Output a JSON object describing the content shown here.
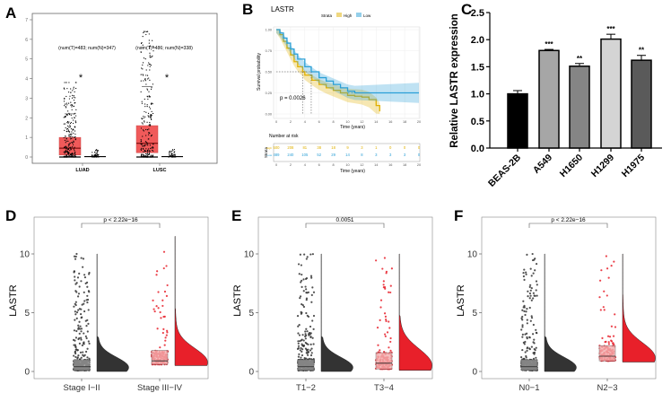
{
  "panels": {
    "A": {
      "letter": "A"
    },
    "B": {
      "letter": "B"
    },
    "C": {
      "letter": "C"
    },
    "D": {
      "letter": "D"
    },
    "E": {
      "letter": "E"
    },
    "F": {
      "letter": "F"
    }
  },
  "chart_data": [
    {
      "panel": "A",
      "type": "box",
      "ylim": [
        0,
        7
      ],
      "yticks": [
        "0",
        "1",
        "2",
        "3",
        "4",
        "5",
        "6",
        "7"
      ],
      "categories": [
        "LUAD",
        "LUSC"
      ],
      "annotations": [
        "(num(T)=483; num(N)=347)",
        "(num(T)=486; num(N)=338)"
      ],
      "significance": [
        "*",
        "*"
      ],
      "tumor_color": "#f05a5a",
      "groups": [
        {
          "name": "LUAD",
          "tumor": {
            "q1": 0.1,
            "median": 0.45,
            "q3": 1.0,
            "whisker": 2.2,
            "max": 3.8
          },
          "normal": {
            "median": 0.02,
            "max": 0.4
          }
        },
        {
          "name": "LUSC",
          "tumor": {
            "q1": 0.22,
            "median": 0.7,
            "q3": 1.6,
            "whisker": 3.6,
            "max": 6.4
          },
          "normal": {
            "median": 0.02,
            "max": 0.4
          }
        }
      ]
    },
    {
      "panel": "B",
      "type": "line",
      "title": "LASTR",
      "legend_title": "Strata",
      "legend_position": "top",
      "xlabel": "Time (years)",
      "ylabel": "Survival probability",
      "xlim": [
        0,
        20
      ],
      "ylim": [
        0,
        1
      ],
      "xticks": [
        "0",
        "2",
        "4",
        "6",
        "8",
        "10",
        "12",
        "14",
        "16",
        "18",
        "20"
      ],
      "yticks": [
        "0.00",
        "0.25",
        "0.50",
        "0.75",
        "1.00"
      ],
      "pvalue": "p = 0.0026",
      "series": [
        {
          "name": "High",
          "color": "#e0b000",
          "median": 3.7,
          "points": [
            [
              0,
              1
            ],
            [
              0.5,
              0.94
            ],
            [
              1,
              0.86
            ],
            [
              1.5,
              0.78
            ],
            [
              2,
              0.7
            ],
            [
              2.5,
              0.62
            ],
            [
              3,
              0.56
            ],
            [
              3.7,
              0.5
            ],
            [
              4,
              0.46
            ],
            [
              5,
              0.4
            ],
            [
              6,
              0.35
            ],
            [
              7,
              0.31
            ],
            [
              8,
              0.28
            ],
            [
              9,
              0.25
            ],
            [
              10,
              0.22
            ],
            [
              11,
              0.21
            ],
            [
              12,
              0.2
            ],
            [
              13,
              0.17
            ],
            [
              14,
              0.1
            ],
            [
              14.5,
              0.03
            ]
          ]
        },
        {
          "name": "Low",
          "color": "#2a9fd6",
          "median": 4.9,
          "points": [
            [
              0,
              1
            ],
            [
              0.5,
              0.96
            ],
            [
              1,
              0.9
            ],
            [
              1.5,
              0.84
            ],
            [
              2,
              0.77
            ],
            [
              2.5,
              0.71
            ],
            [
              3,
              0.65
            ],
            [
              4,
              0.56
            ],
            [
              4.9,
              0.5
            ],
            [
              6,
              0.43
            ],
            [
              7,
              0.39
            ],
            [
              8,
              0.35
            ],
            [
              9,
              0.31
            ],
            [
              10,
              0.27
            ],
            [
              11,
              0.25
            ],
            [
              20,
              0.25
            ]
          ]
        }
      ],
      "risk_table": {
        "title": "Number at risk",
        "ylabel": "Strata",
        "xlabel": "Time (years)",
        "times": [
          0,
          2,
          4,
          6,
          8,
          10,
          12,
          14,
          16,
          18,
          20
        ],
        "rows": [
          {
            "name": "High",
            "values": [
              500,
              208,
              81,
              38,
              18,
              9,
              3,
              1,
              0,
              0,
              0
            ]
          },
          {
            "name": "Low",
            "values": [
              489,
              240,
              105,
              52,
              29,
              14,
              8,
              3,
              3,
              3,
              0
            ]
          }
        ]
      }
    },
    {
      "panel": "C",
      "type": "bar",
      "ylabel": "Relative LASTR expression",
      "ylim": [
        0,
        2.5
      ],
      "yticks": [
        "0.0",
        "0.5",
        "1.0",
        "1.5",
        "2.0",
        "2.5"
      ],
      "categories": [
        "BEAS-2B",
        "A549",
        "H1650",
        "H1299",
        "H1975"
      ],
      "values": [
        1.0,
        1.8,
        1.51,
        2.01,
        1.62
      ],
      "errors": [
        0.06,
        0.02,
        0.05,
        0.09,
        0.09
      ],
      "significance": [
        "",
        "***",
        "**",
        "***",
        "**"
      ],
      "colors": [
        "#000000",
        "#a6a6a6",
        "#858585",
        "#d4d4d4",
        "#5a5a5a"
      ]
    },
    {
      "panel": "D",
      "type": "raincloud",
      "ylabel": "LASTR",
      "ylim": [
        0,
        12
      ],
      "yticks": [
        "0",
        "5",
        "10"
      ],
      "categories": [
        "Stage I−II",
        "Stage III−IV"
      ],
      "pvalue": "p < 2.22e−16",
      "colors": [
        "#333333",
        "#e8202a"
      ],
      "groups": [
        {
          "q1": 0.1,
          "median": 0.4,
          "q3": 1.0,
          "max": 10
        },
        {
          "q1": 0.6,
          "median": 0.9,
          "q3": 1.8,
          "max": 11.5
        }
      ]
    },
    {
      "panel": "E",
      "type": "raincloud",
      "ylabel": "LASTR",
      "ylim": [
        0,
        12
      ],
      "yticks": [
        "0",
        "5",
        "10"
      ],
      "categories": [
        "T1−2",
        "T3−4"
      ],
      "pvalue": "0.0051",
      "colors": [
        "#333333",
        "#e8202a"
      ],
      "groups": [
        {
          "q1": 0.1,
          "median": 0.4,
          "q3": 1.0,
          "max": 10
        },
        {
          "q1": 0.2,
          "median": 0.7,
          "q3": 1.6,
          "max": 10
        }
      ]
    },
    {
      "panel": "F",
      "type": "raincloud",
      "ylabel": "LASTR",
      "ylim": [
        0,
        12
      ],
      "yticks": [
        "0",
        "5",
        "10"
      ],
      "categories": [
        "N0−1",
        "N2−3"
      ],
      "pvalue": "p < 2.22e−16",
      "colors": [
        "#333333",
        "#e8202a"
      ],
      "groups": [
        {
          "q1": 0.1,
          "median": 0.4,
          "q3": 1.0,
          "max": 10
        },
        {
          "q1": 0.9,
          "median": 1.3,
          "q3": 2.2,
          "max": 10
        }
      ]
    }
  ]
}
